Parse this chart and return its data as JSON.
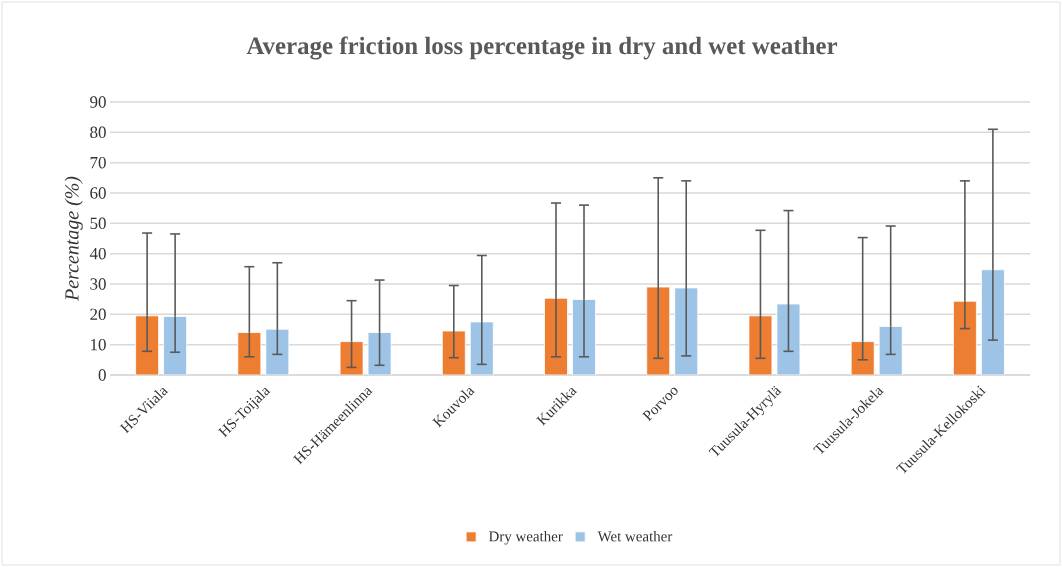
{
  "chart_data": {
    "type": "bar",
    "title": "Average friction loss percentage in dry and wet weather",
    "ylabel": "Percentage (%)",
    "categories": [
      "HS-Viiala",
      "HS-Toijala",
      "HS-Hämeenlinna",
      "Kouvola",
      "Kurikka",
      "Porvoo",
      "Tuusula-Hyrylä",
      "Tuusula-Jokela",
      "Tuusula-Kellokoski"
    ],
    "series": [
      {
        "name": "Dry weather",
        "color": "#ed7d31",
        "values": [
          19.5,
          14,
          11,
          14.5,
          25.3,
          29,
          19.5,
          11,
          24.3
        ],
        "errors": [
          [
            7.8,
            46.8
          ],
          [
            6,
            35.7
          ],
          [
            2.5,
            24.5
          ],
          [
            5.7,
            29.5
          ],
          [
            6,
            56.7
          ],
          [
            5.5,
            65
          ],
          [
            5.5,
            47.7
          ],
          [
            5,
            45.3
          ],
          [
            15.3,
            64
          ]
        ]
      },
      {
        "name": "Wet weather",
        "color": "#9dc3e6",
        "values": [
          19.3,
          15.1,
          14,
          17.5,
          24.9,
          28.7,
          23.4,
          16,
          34.7
        ],
        "errors": [
          [
            7.5,
            46.5
          ],
          [
            6.8,
            37
          ],
          [
            3.2,
            31.3
          ],
          [
            3.5,
            39.4
          ],
          [
            6,
            56
          ],
          [
            6.3,
            64
          ],
          [
            7.8,
            54.2
          ],
          [
            6.8,
            49.1
          ],
          [
            11.5,
            81
          ]
        ]
      }
    ],
    "ylim": [
      0,
      90
    ],
    "yticks": [
      0,
      10,
      20,
      30,
      40,
      50,
      60,
      70,
      80,
      90
    ],
    "grid": "y",
    "legend": "bottom"
  }
}
